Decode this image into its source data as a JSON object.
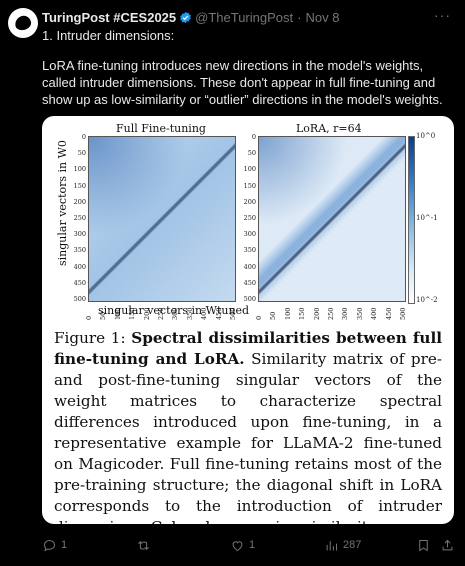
{
  "post": {
    "author_name": "TuringPost #CES2025",
    "handle": "@TheTuringPost",
    "separator": "·",
    "date": "Nov 8",
    "more_label": "···",
    "line1": "1. Intruder dimensions:",
    "line2": "LoRA fine-tuning introduces new directions in the model's weights, called intruder dimensions. These don't appear in full fine-tuning and show up as low-similarity or “outlier” directions in the model's weights."
  },
  "figure": {
    "panel_left_title": "Full Fine-tuning",
    "panel_right_title": "LoRA, r=64",
    "y_ticks": [
      "0",
      "50",
      "100",
      "150",
      "200",
      "250",
      "300",
      "350",
      "400",
      "450",
      "500"
    ],
    "x_ticks": [
      "0",
      "50",
      "100",
      "150",
      "200",
      "250",
      "300",
      "350",
      "400",
      "450",
      "500"
    ],
    "ylabel": "singular vectors in W0",
    "xlabel": "singular vectors in Wtuned",
    "colorbar_ticks": [
      "10^0",
      "10^-1",
      "10^-2"
    ],
    "caption_label": "Figure 1:",
    "caption_bold": "Spectral dissimilarities between full fine-tuning and LoRA.",
    "caption_rest": "Similarity matrix of pre- and post-fine-tuning singular vectors of the weight matrices to characterize spectral differences introduced upon fine-tuning, in a representative example for LLaMA-2 fine-tuned on Magicoder. Full fine-tuning retains most of the pre-training structure; the diagonal shift in LoRA corresponds to the introduction of intruder dimensions. Color shows cosine similarity."
  },
  "actions": {
    "replies": "1",
    "retweets": "",
    "likes": "1",
    "views": "287"
  },
  "colors": {
    "background": "#000000",
    "text": "#e7e9ea",
    "muted": "#71767b",
    "verified": "#1d9bf0"
  }
}
